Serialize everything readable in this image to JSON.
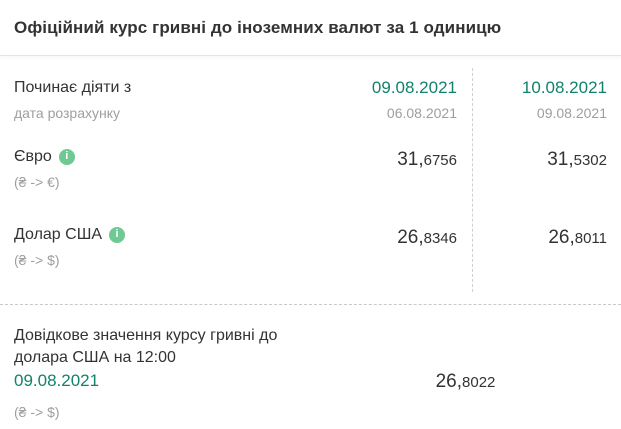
{
  "title": "Офіційний курс гривні до іноземних валют за 1 одиницю",
  "rates_table": {
    "effective": {
      "label": "Починає діяти з",
      "sublabel": "дата розрахунку",
      "columns": [
        {
          "effective_date": "09.08.2021",
          "calculation_date": "06.08.2021"
        },
        {
          "effective_date": "10.08.2021",
          "calculation_date": "09.08.2021"
        }
      ]
    },
    "rows": [
      {
        "currency": "Євро",
        "pair": "(₴ -> €)",
        "info_icon": "i",
        "rates": [
          "31,6756",
          "31,5302"
        ]
      },
      {
        "currency": "Долар США",
        "pair": "(₴ -> $)",
        "info_icon": "i",
        "rates": [
          "26,8346",
          "26,8011"
        ]
      }
    ]
  },
  "reference": {
    "label": "Довідкове значення курсу гривні до долара США на 12:00",
    "date": "09.08.2021",
    "pair": "(₴ -> $)",
    "rate": "26,8022"
  },
  "colors": {
    "accent_green": "#12836a",
    "info_icon_green": "#6fc994"
  }
}
